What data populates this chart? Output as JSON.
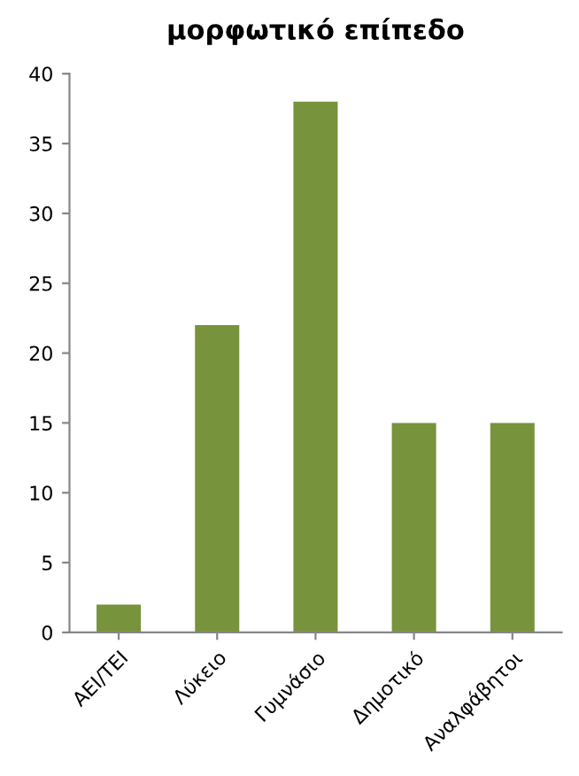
{
  "chart_data": {
    "type": "bar",
    "title": "μορφωτικό επίπεδο",
    "categories": [
      "ΑΕΙ/ΤΕΙ",
      "Λύκειο",
      "Γυμνάσιο",
      "Δημοτικό",
      "Αναλφάβητοι"
    ],
    "values": [
      2,
      22,
      38,
      15,
      15
    ],
    "color": "#77933c",
    "ylim": [
      0,
      40
    ],
    "yticks": [
      0,
      5,
      10,
      15,
      20,
      25,
      30,
      35,
      40
    ],
    "grid": false,
    "legend": false
  }
}
